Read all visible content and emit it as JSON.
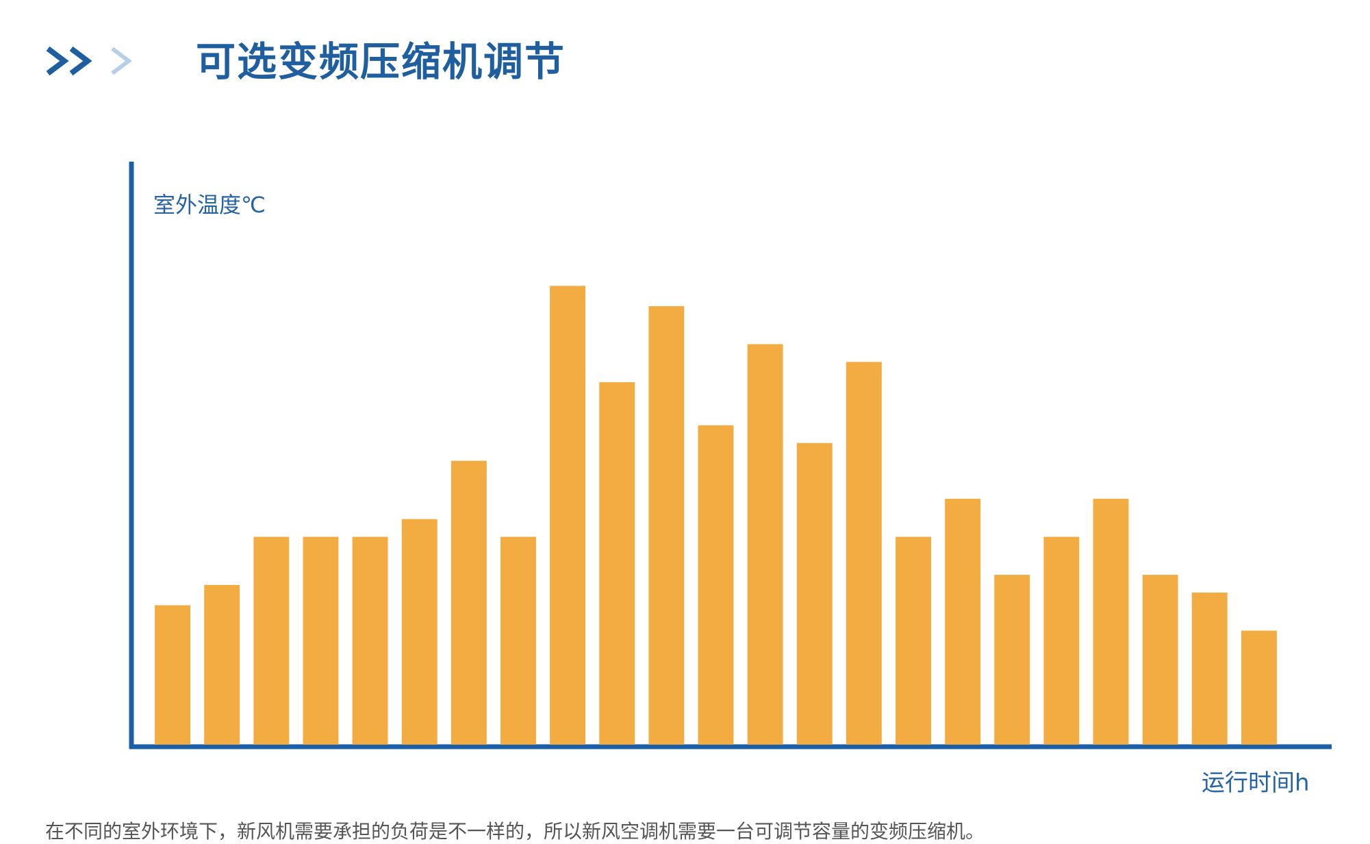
{
  "header": {
    "title": "可选变频压缩机调节",
    "icons": [
      "double-chevron-right-icon",
      "chevron-right-icon"
    ]
  },
  "colors": {
    "bar": "#F2AC42",
    "axis": "#1C5FA8",
    "title": "#1F5FA0",
    "chevron_dark": "#1F5FA0",
    "chevron_light": "#B7CFE6",
    "caption": "#555555"
  },
  "chart_data": {
    "type": "bar",
    "title": "可选变频压缩机调节",
    "ylabel": "室外温度℃",
    "xlabel": "运行时间h",
    "categories": [
      "",
      "",
      "",
      "",
      "",
      "",
      "",
      "",
      "",
      "",
      "",
      "",
      "",
      "",
      "",
      "",
      "",
      "",
      "",
      "",
      "",
      "",
      ""
    ],
    "values": [
      5.5,
      6.3,
      8.2,
      8.2,
      8.2,
      8.9,
      11.2,
      8.2,
      18.1,
      14.3,
      17.3,
      12.6,
      15.8,
      11.9,
      15.1,
      8.2,
      9.7,
      6.7,
      8.2,
      9.7,
      6.7,
      6.0,
      4.5
    ],
    "ylim": [
      0,
      23
    ],
    "grid": false,
    "legend": "none"
  },
  "caption": "在不同的室外环境下，新风机需要承担的负荷是不一样的，所以新风空调机需要一台可调节容量的变频压缩机。"
}
